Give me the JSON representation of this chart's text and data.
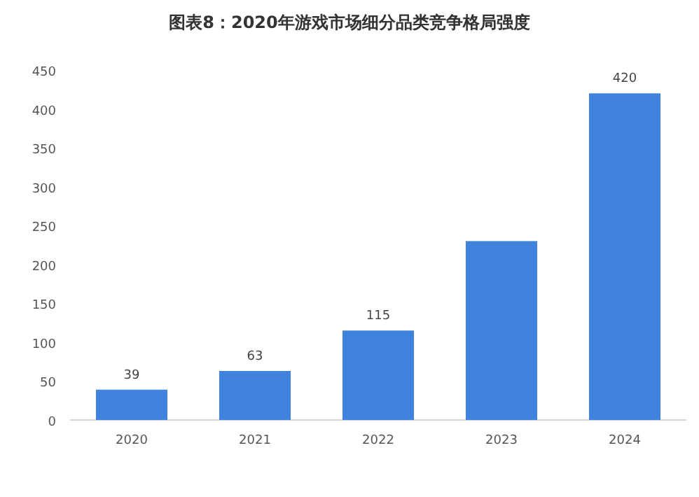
{
  "chart_data": {
    "type": "bar",
    "title": "图表8：2020年游戏市场细分品类竞争格局强度",
    "categories": [
      "2020",
      "2021",
      "2022",
      "2023",
      "2024"
    ],
    "values": [
      39,
      63,
      115,
      230,
      420
    ],
    "value_labels": [
      "39",
      "63",
      "115",
      null,
      "420"
    ],
    "color": "#3f83dc",
    "ylim": [
      0,
      450
    ],
    "yticks": [
      0,
      50,
      100,
      150,
      200,
      250,
      300,
      350,
      400,
      450
    ],
    "grid": false
  }
}
